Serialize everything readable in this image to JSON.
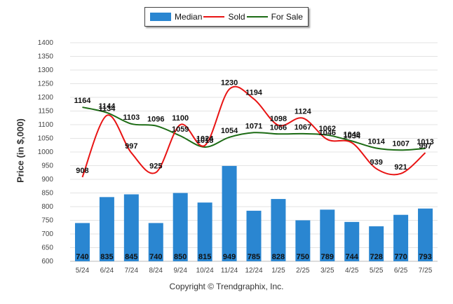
{
  "legend": {
    "median_label": "Median",
    "sold_label": "Sold",
    "for_sale_label": "For Sale"
  },
  "ylabel": "Price (in $,000)",
  "copyright": "Copyright © Trendgraphix, Inc.",
  "colors": {
    "median": "#2a86d1",
    "sold": "#e81414",
    "for_sale": "#1c6b14"
  },
  "chart_data": {
    "type": "bar",
    "categories": [
      "5/24",
      "6/24",
      "7/24",
      "8/24",
      "9/24",
      "10/24",
      "11/24",
      "12/24",
      "1/25",
      "2/25",
      "3/25",
      "4/25",
      "5/25",
      "6/25",
      "7/25"
    ],
    "series": [
      {
        "name": "Median",
        "type": "bar",
        "values": [
          740,
          835,
          845,
          740,
          850,
          815,
          949,
          785,
          828,
          750,
          789,
          744,
          728,
          770,
          793
        ]
      },
      {
        "name": "Sold",
        "type": "line",
        "values": [
          908,
          1134,
          997,
          925,
          1100,
          1024,
          1230,
          1194,
          1098,
          1124,
          1046,
          1034,
          939,
          921,
          997
        ]
      },
      {
        "name": "For Sale",
        "type": "line",
        "values": [
          1164,
          1144,
          1103,
          1096,
          1059,
          1018,
          1054,
          1071,
          1066,
          1067,
          1062,
          1040,
          1014,
          1007,
          1013
        ]
      }
    ],
    "ylabel": "Price (in $,000)",
    "ylim": [
      600,
      1400
    ],
    "yticks": [
      600,
      650,
      700,
      750,
      800,
      850,
      900,
      950,
      1000,
      1050,
      1100,
      1150,
      1200,
      1250,
      1300,
      1350,
      1400
    ],
    "grid": true,
    "legend": "top"
  }
}
